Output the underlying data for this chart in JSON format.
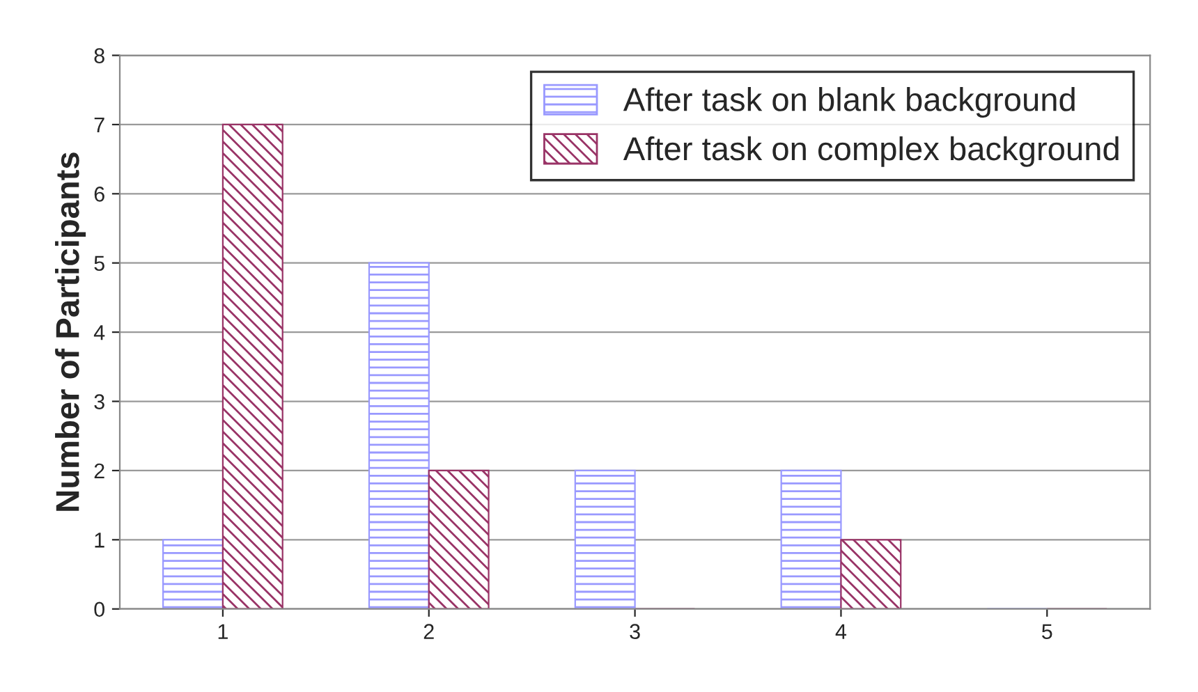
{
  "chart_data": {
    "type": "bar",
    "ylabel": "Number of Participants",
    "categories": [
      "1",
      "2",
      "3",
      "4",
      "5"
    ],
    "series": [
      {
        "name": "After task on blank background",
        "color": "#9999ff",
        "values": [
          1,
          5,
          2,
          2,
          0
        ]
      },
      {
        "name": "After task on complex background",
        "color": "#993366",
        "values": [
          7,
          2,
          0,
          1,
          0
        ]
      }
    ],
    "ylim": [
      0,
      8
    ],
    "yticks": [
      0,
      1,
      2,
      3,
      4,
      5,
      6,
      7,
      8
    ],
    "grid": "y",
    "legend": "top right"
  }
}
